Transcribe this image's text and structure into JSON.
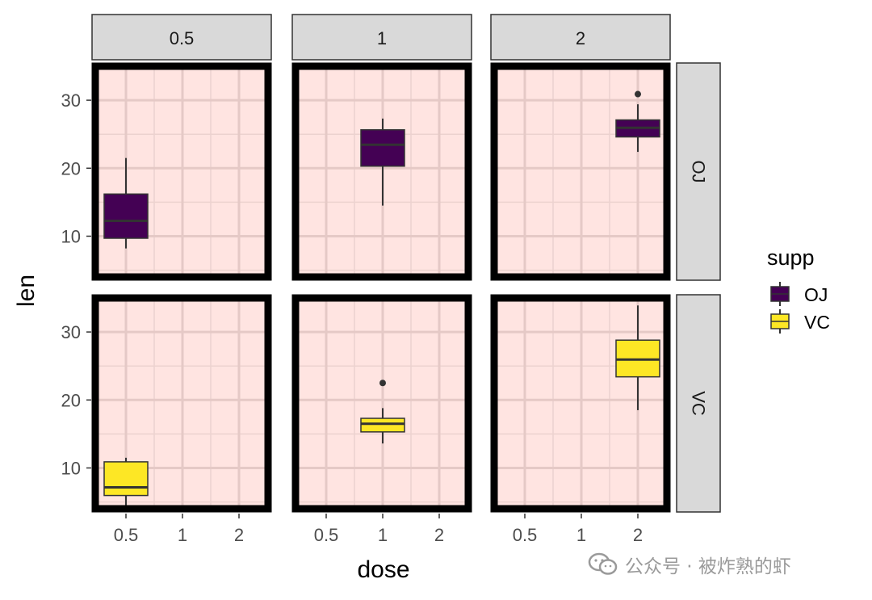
{
  "chart_data": {
    "type": "boxplot",
    "facet_cols": [
      "0.5",
      "1",
      "2"
    ],
    "facet_rows": [
      "OJ",
      "VC"
    ],
    "x_categories": [
      "0.5",
      "1",
      "2"
    ],
    "xlabel": "dose",
    "ylabel": "len",
    "ylim": [
      4,
      35
    ],
    "yticks": [
      10,
      20,
      30
    ],
    "grid": true,
    "legend": {
      "title": "supp",
      "position": "right",
      "entries": [
        {
          "name": "OJ",
          "fill": "#440154"
        },
        {
          "name": "VC",
          "fill": "#FDE725"
        }
      ]
    },
    "panel_background": "#FFE4E1",
    "panel_border": "#000000",
    "boxes": [
      {
        "row": "OJ",
        "col": "0.5",
        "x": "0.5",
        "min": 8.2,
        "q1": 9.7,
        "median": 12.25,
        "q3": 16.2,
        "max": 21.5,
        "outliers": []
      },
      {
        "row": "OJ",
        "col": "1",
        "x": "1",
        "min": 14.5,
        "q1": 20.3,
        "median": 23.45,
        "q3": 25.65,
        "max": 27.3,
        "outliers": []
      },
      {
        "row": "OJ",
        "col": "2",
        "x": "2",
        "min": 22.4,
        "q1": 24.6,
        "median": 25.95,
        "q3": 27.1,
        "max": 29.4,
        "outliers": [
          30.9
        ]
      },
      {
        "row": "VC",
        "col": "0.5",
        "x": "0.5",
        "min": 4.2,
        "q1": 5.95,
        "median": 7.15,
        "q3": 10.9,
        "max": 11.5,
        "outliers": []
      },
      {
        "row": "VC",
        "col": "1",
        "x": "1",
        "min": 13.6,
        "q1": 15.3,
        "median": 16.5,
        "q3": 17.3,
        "max": 18.8,
        "outliers": [
          22.5
        ]
      },
      {
        "row": "VC",
        "col": "2",
        "x": "2",
        "min": 18.5,
        "q1": 23.4,
        "median": 25.95,
        "q3": 28.8,
        "max": 33.9,
        "outliers": []
      }
    ]
  },
  "watermark": {
    "text": "公众号 · 被炸熟的虾",
    "icon": "wechat-icon"
  }
}
